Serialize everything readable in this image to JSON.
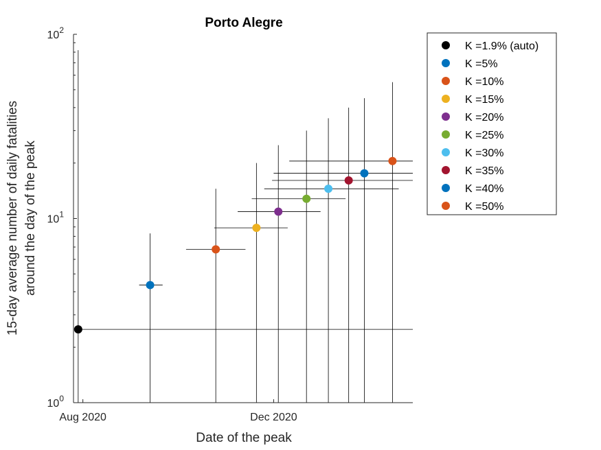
{
  "chart_data": {
    "type": "scatter",
    "title": "Porto Alegre",
    "xlabel": "Date of the peak",
    "ylabel_lines": [
      "15-day average number of daily fatalities",
      "around the day of the peak"
    ],
    "y_scale": "log",
    "ylim": [
      1,
      100
    ],
    "xlim": [
      "2020-07-26",
      "2021-02-28"
    ],
    "y_ticks": [
      {
        "value": 1,
        "base": "10",
        "exp": "0"
      },
      {
        "value": 10,
        "base": "10",
        "exp": "1"
      },
      {
        "value": 100,
        "base": "10",
        "exp": "2"
      }
    ],
    "x_ticks": [
      {
        "date": "2020-08-01",
        "label": "Aug 2020"
      },
      {
        "date": "2020-12-01",
        "label": "Dec 2020"
      }
    ],
    "legend_position": "outside-right-top",
    "series": [
      {
        "name": "K =1.9% (auto)",
        "color": "#000000",
        "date": "2020-07-29",
        "y": 2.5,
        "y_low": 1,
        "y_high": 82,
        "x_low": "2020-07-29",
        "x_high": "2021-02-28"
      },
      {
        "name": "K =5%",
        "color": "#0072BD",
        "date": "2020-09-13",
        "y": 4.35,
        "y_low": 1,
        "y_high": 8.3,
        "x_low": "2020-09-06",
        "x_high": "2020-09-21"
      },
      {
        "name": "K =10%",
        "color": "#D95319",
        "date": "2020-10-25",
        "y": 6.8,
        "y_low": 1,
        "y_high": 14.5,
        "x_low": "2020-10-06",
        "x_high": "2020-11-13"
      },
      {
        "name": "K =15%",
        "color": "#EDB120",
        "date": "2020-11-20",
        "y": 8.9,
        "y_low": 1,
        "y_high": 20,
        "x_low": "2020-10-24",
        "x_high": "2020-12-10"
      },
      {
        "name": "K =20%",
        "color": "#7E2F8E",
        "date": "2020-12-04",
        "y": 10.9,
        "y_low": 1,
        "y_high": 25,
        "x_low": "2020-11-08",
        "x_high": "2020-12-31"
      },
      {
        "name": "K =25%",
        "color": "#77AC30",
        "date": "2020-12-22",
        "y": 12.8,
        "y_low": 1,
        "y_high": 30,
        "x_low": "2020-11-17",
        "x_high": "2021-01-16"
      },
      {
        "name": "K =30%",
        "color": "#4DBEEE",
        "date": "2021-01-05",
        "y": 14.5,
        "y_low": 1,
        "y_high": 35,
        "x_low": "2020-11-25",
        "x_high": "2021-02-19"
      },
      {
        "name": "K =35%",
        "color": "#A2142F",
        "date": "2021-01-18",
        "y": 16.1,
        "y_low": 1,
        "y_high": 40,
        "x_low": "2020-11-30",
        "x_high": "2021-02-28"
      },
      {
        "name": "K =40%",
        "color": "#0072BD",
        "date": "2021-01-28",
        "y": 17.6,
        "y_low": 1,
        "y_high": 45,
        "x_low": "2020-12-01",
        "x_high": "2021-02-28"
      },
      {
        "name": "K =50%",
        "color": "#D95319",
        "date": "2021-02-15",
        "y": 20.5,
        "y_low": 1,
        "y_high": 55,
        "x_low": "2020-12-11",
        "x_high": "2021-02-28"
      }
    ]
  }
}
